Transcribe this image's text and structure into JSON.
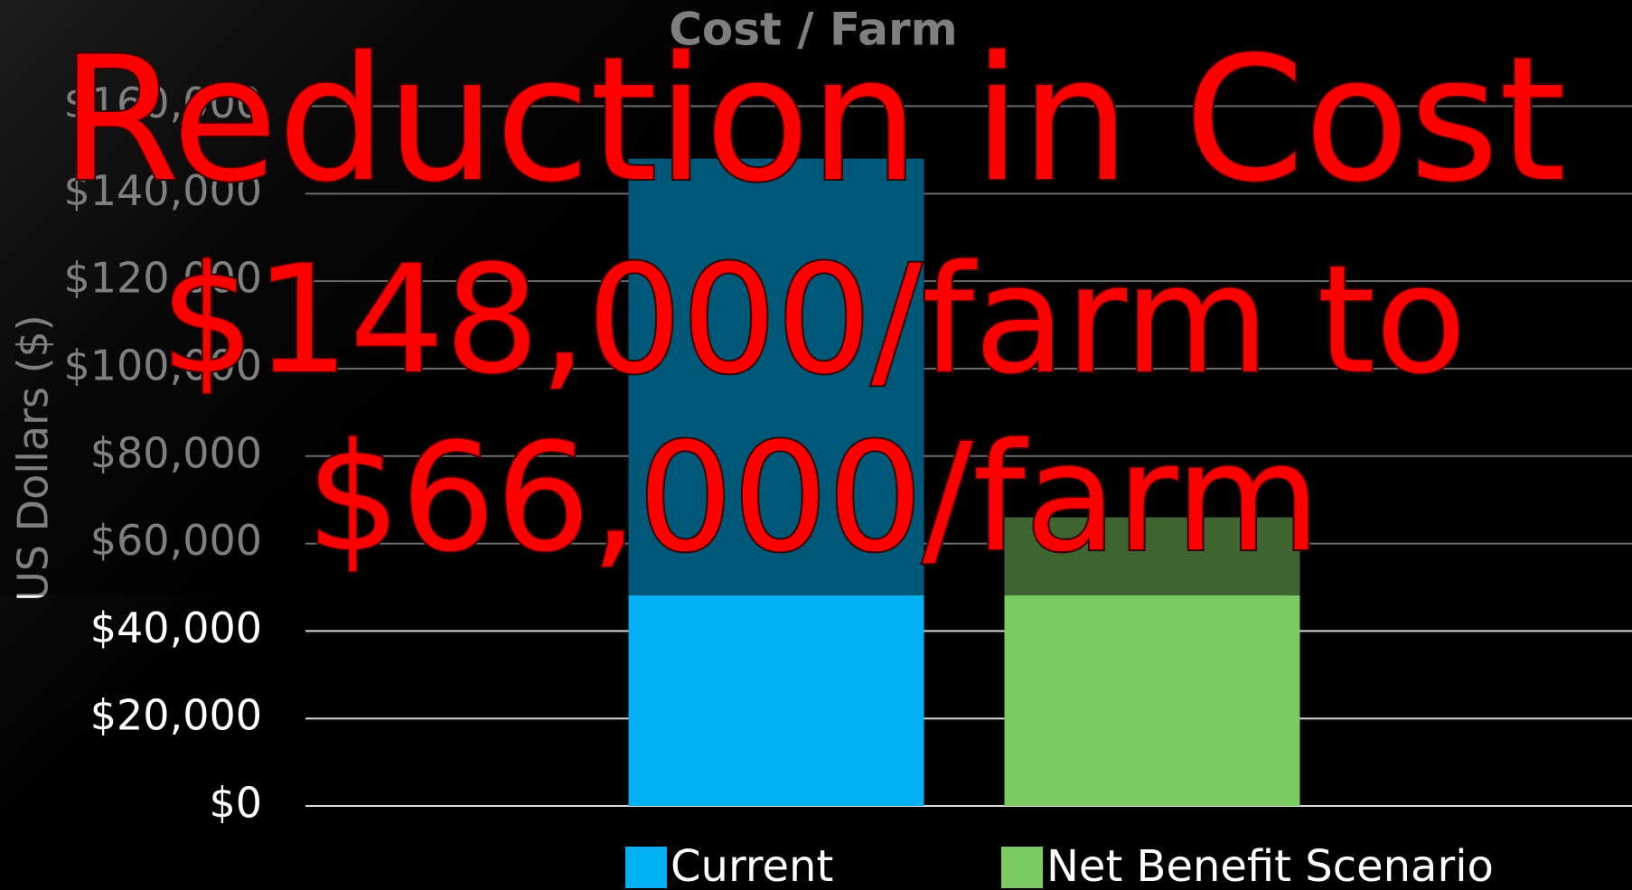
{
  "chart_data": {
    "type": "bar",
    "title": "Cost / Farm",
    "y_label": "US Dollars ($)",
    "categories": [
      "Current",
      "Net Benefit Scenario"
    ],
    "values": [
      148000,
      66000
    ],
    "colors": [
      "#00b0f0",
      "#7ccb62"
    ],
    "ylim": [
      0,
      160000
    ],
    "yticks": [
      {
        "value": 0,
        "label": "$0"
      },
      {
        "value": 20000,
        "label": "$20,000"
      },
      {
        "value": 40000,
        "label": "$40,000"
      },
      {
        "value": 60000,
        "label": "$60,000"
      },
      {
        "value": 80000,
        "label": "$80,000"
      },
      {
        "value": 100000,
        "label": "$100,000"
      },
      {
        "value": 120000,
        "label": "$120,000"
      },
      {
        "value": 140000,
        "label": "$140,000"
      },
      {
        "value": 160000,
        "label": "$160,000"
      }
    ],
    "grid": true,
    "legend": "bottom",
    "annotations": [
      "Reduction in Cost",
      "$148,000/farm to",
      "$66,000/farm"
    ]
  }
}
